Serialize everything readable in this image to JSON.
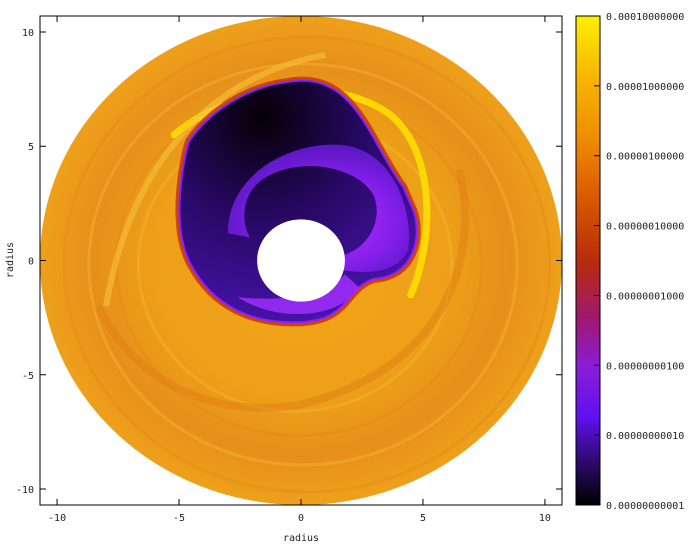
{
  "chart_data": {
    "type": "heatmap",
    "projection": "polar-disk",
    "title": "",
    "xlabel": "radius",
    "ylabel": "radius",
    "xlim": [
      -10.7,
      10.7
    ],
    "ylim": [
      -10.7,
      10.7
    ],
    "x_ticks": [
      {
        "value": -10,
        "label": "-10"
      },
      {
        "value": -5,
        "label": "-5"
      },
      {
        "value": 0,
        "label": "0"
      },
      {
        "value": 5,
        "label": "5"
      },
      {
        "value": 10,
        "label": "10"
      }
    ],
    "y_ticks": [
      {
        "value": 10,
        "label": "10"
      },
      {
        "value": 5,
        "label": "5"
      },
      {
        "value": 0,
        "label": "0"
      },
      {
        "value": -5,
        "label": "-5"
      },
      {
        "value": -10,
        "label": "-10"
      }
    ],
    "grid": false,
    "disk": {
      "inner_radius": 1.8,
      "outer_radius": 10.7
    },
    "colorbar": {
      "scale": "log",
      "position": "right",
      "range": [
        1e-12,
        0.0001
      ],
      "ticks": [
        "0.00010000000",
        "0.00001000000",
        "0.00000100000",
        "0.00000010000",
        "0.00000001000",
        "0.00000000100",
        "0.00000000010",
        "0.00000000001"
      ],
      "colors": [
        "#ffee00",
        "#f0a000",
        "#e07000",
        "#b83000",
        "#a01858",
        "#8020e0",
        "#5010c0",
        "#000000"
      ]
    },
    "features": [
      {
        "name": "low-density cavity",
        "center": [
          0.5,
          3.0
        ],
        "log_value": -11.3
      },
      {
        "name": "spiral arm",
        "center": [
          1.5,
          2.5
        ],
        "log_value": -10.5
      },
      {
        "name": "outer disk",
        "log_value": -5.6
      }
    ]
  }
}
